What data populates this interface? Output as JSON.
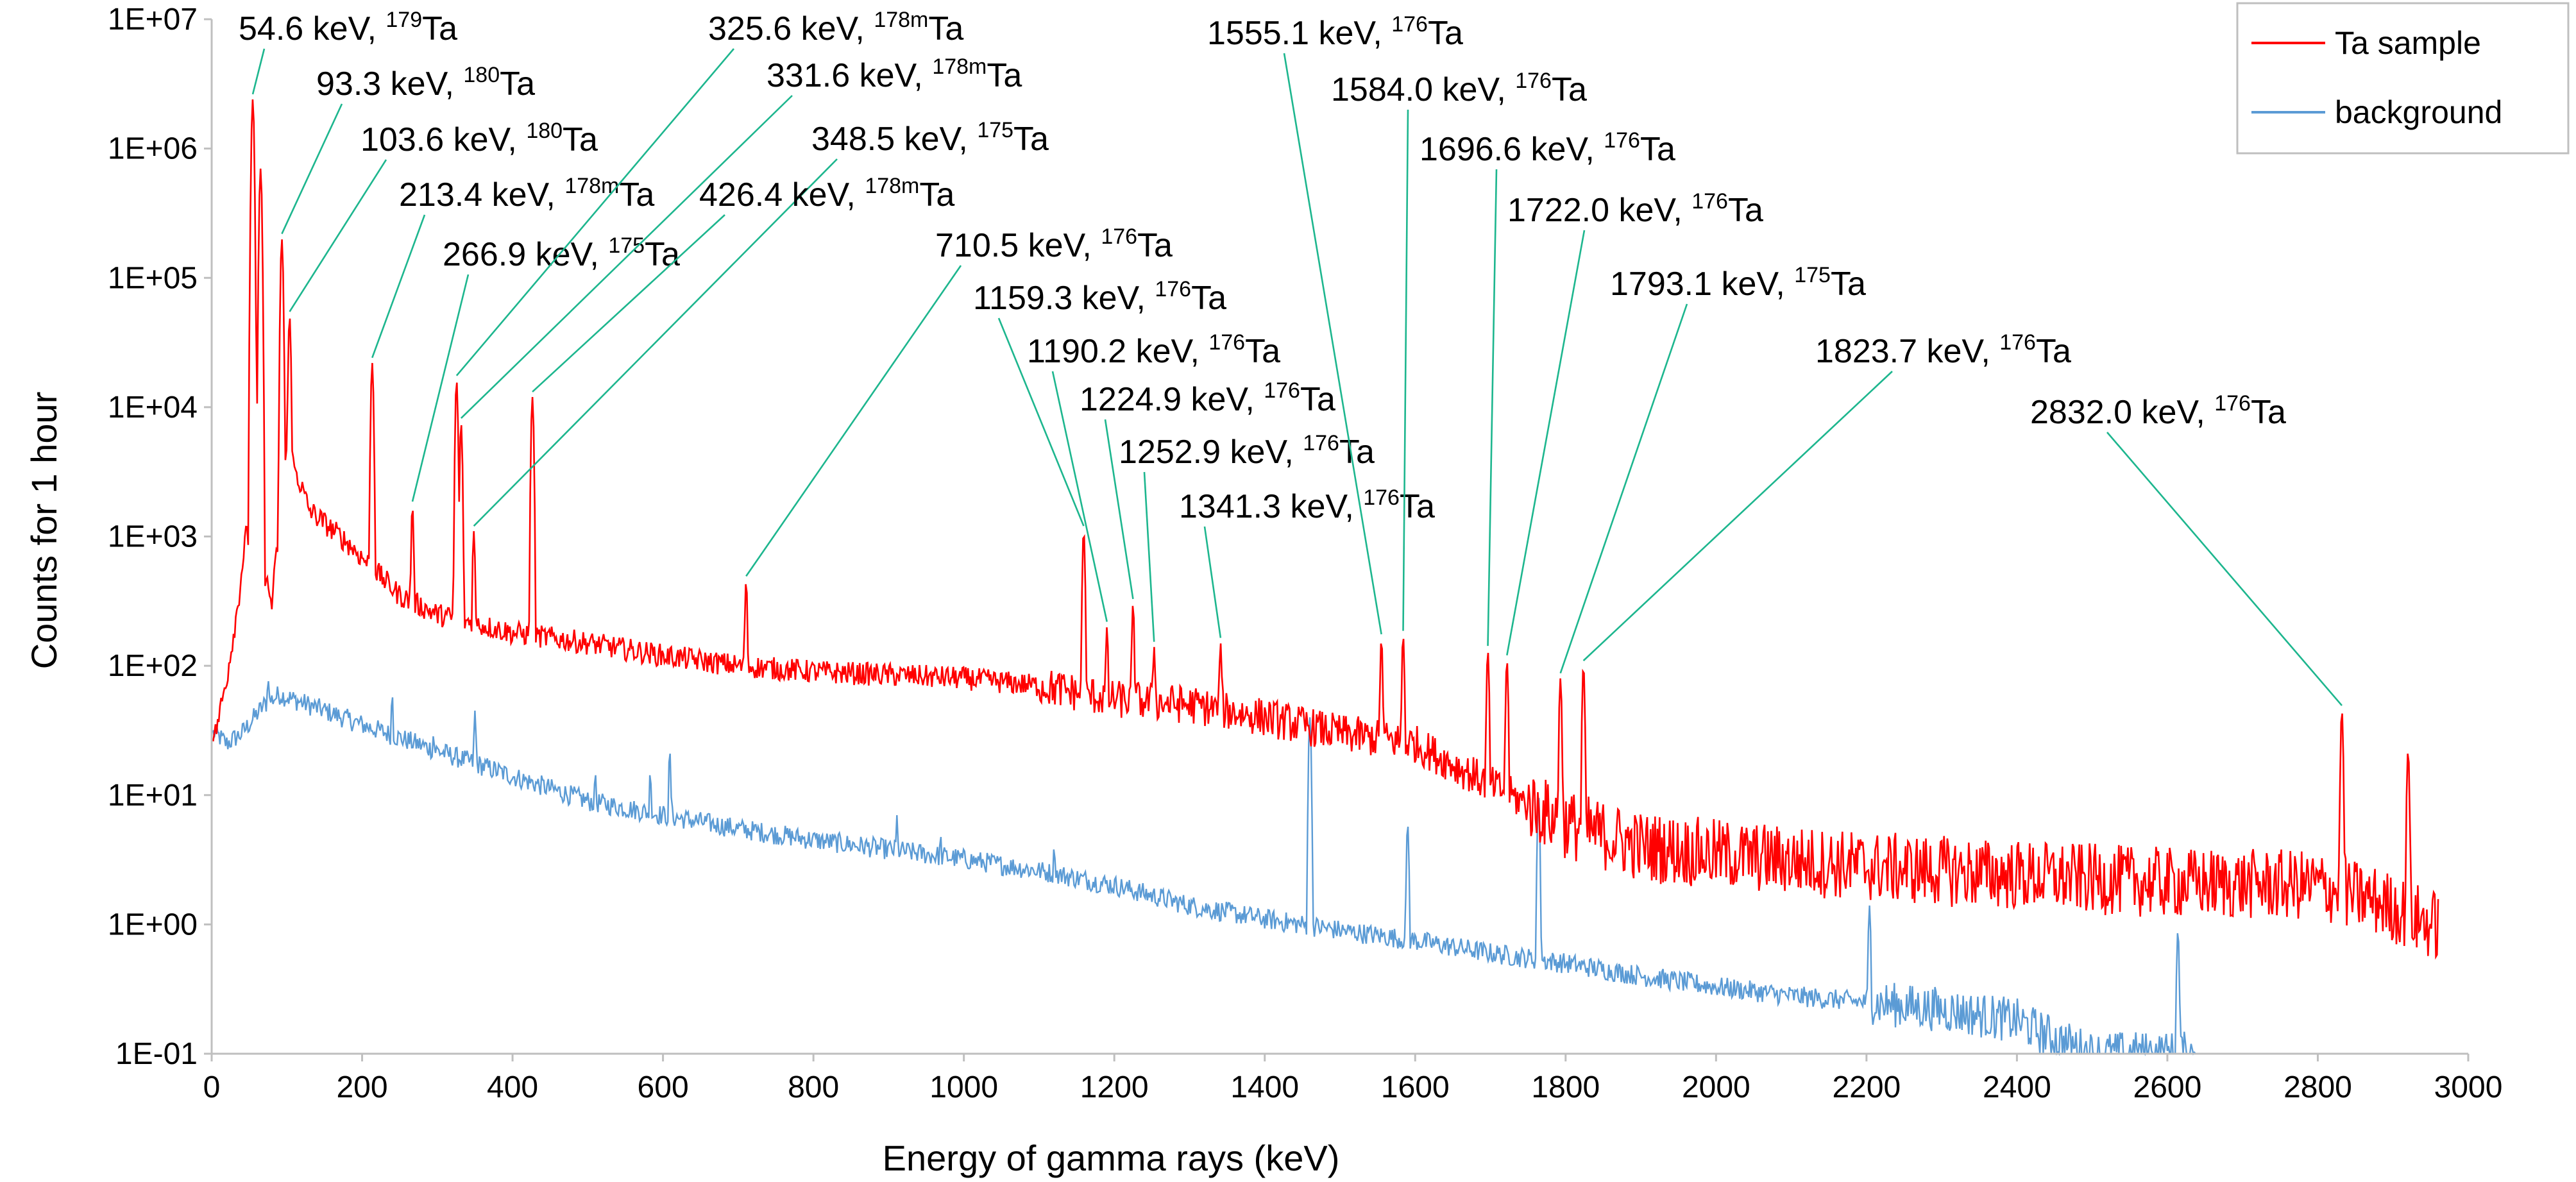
{
  "chart_data": {
    "type": "line",
    "xlabel": "Energy of gamma rays (keV)",
    "ylabel": "Counts for 1 hour",
    "xlim": [
      0,
      3000
    ],
    "ylim": [
      0.1,
      10000000
    ],
    "y_scale": "log",
    "x_ticks": [
      "0",
      "200",
      "400",
      "600",
      "800",
      "1000",
      "1200",
      "1400",
      "1600",
      "1800",
      "2000",
      "2200",
      "2400",
      "2600",
      "2800",
      "3000"
    ],
    "y_ticks": [
      "1E-01",
      "1E+00",
      "1E+01",
      "1E+02",
      "1E+03",
      "1E+04",
      "1E+05",
      "1E+06",
      "1E+07"
    ],
    "legend_position": "top-right",
    "colors": {
      "Ta sample": "#ff0000",
      "background": "#5b9bd5",
      "annotation": "#1db68e"
    },
    "series": [
      {
        "name": "Ta sample",
        "baseline": [
          [
            5,
            30
          ],
          [
            20,
            80
          ],
          [
            35,
            300
          ],
          [
            45,
            1000
          ],
          [
            60,
            900
          ],
          [
            80,
            300
          ],
          [
            100,
            5000
          ],
          [
            130,
            1600
          ],
          [
            180,
            900
          ],
          [
            250,
            350
          ],
          [
            300,
            250
          ],
          [
            400,
            180
          ],
          [
            500,
            150
          ],
          [
            600,
            120
          ],
          [
            700,
            100
          ],
          [
            800,
            90
          ],
          [
            900,
            85
          ],
          [
            1000,
            80
          ],
          [
            1100,
            70
          ],
          [
            1200,
            55
          ],
          [
            1300,
            50
          ],
          [
            1400,
            40
          ],
          [
            1500,
            30
          ],
          [
            1600,
            25
          ],
          [
            1700,
            12
          ],
          [
            1800,
            6
          ],
          [
            1900,
            4
          ],
          [
            2000,
            3.5
          ],
          [
            2200,
            2.8
          ],
          [
            2400,
            2.4
          ],
          [
            2600,
            2.1
          ],
          [
            2800,
            2.0
          ],
          [
            2880,
            1.5
          ],
          [
            2950,
            1.0
          ]
        ],
        "peaks": [
          [
            54.6,
            2400000
          ],
          [
            65,
            700000
          ],
          [
            93.3,
            200000
          ],
          [
            103.6,
            50000
          ],
          [
            213.4,
            22000
          ],
          [
            266.9,
            1700
          ],
          [
            325.6,
            16000
          ],
          [
            331.6,
            7500
          ],
          [
            348.5,
            1100
          ],
          [
            426.4,
            12000
          ],
          [
            710.5,
            450
          ],
          [
            1159.3,
            1100
          ],
          [
            1190.2,
            200
          ],
          [
            1224.9,
            300
          ],
          [
            1252.9,
            140
          ],
          [
            1341.3,
            150
          ],
          [
            1555.1,
            160
          ],
          [
            1584.0,
            170
          ],
          [
            1696.6,
            130
          ],
          [
            1722.0,
            110
          ],
          [
            1793.1,
            80
          ],
          [
            1823.7,
            100
          ],
          [
            2832.0,
            45
          ],
          [
            2920,
            22
          ]
        ]
      },
      {
        "name": "background",
        "baseline": [
          [
            5,
            30
          ],
          [
            20,
            25
          ],
          [
            40,
            30
          ],
          [
            70,
            50
          ],
          [
            90,
            60
          ],
          [
            150,
            45
          ],
          [
            200,
            35
          ],
          [
            300,
            22
          ],
          [
            400,
            14
          ],
          [
            500,
            9
          ],
          [
            600,
            7
          ],
          [
            700,
            5.5
          ],
          [
            800,
            4.5
          ],
          [
            900,
            3.8
          ],
          [
            1000,
            3.2
          ],
          [
            1100,
            2.6
          ],
          [
            1200,
            2.0
          ],
          [
            1300,
            1.4
          ],
          [
            1400,
            1.1
          ],
          [
            1500,
            0.9
          ],
          [
            1600,
            0.75
          ],
          [
            1700,
            0.6
          ],
          [
            1800,
            0.5
          ],
          [
            1900,
            0.4
          ],
          [
            2000,
            0.33
          ],
          [
            2100,
            0.28
          ],
          [
            2200,
            0.25
          ],
          [
            2300,
            0.22
          ],
          [
            2400,
            0.18
          ],
          [
            2450,
            0.13
          ],
          [
            2500,
            0.1
          ]
        ],
        "peaks": [
          [
            75,
            80
          ],
          [
            240,
            60
          ],
          [
            295,
            30
          ],
          [
            350,
            45
          ],
          [
            510,
            15
          ],
          [
            583,
            15
          ],
          [
            609,
            22
          ],
          [
            911,
            7
          ],
          [
            969,
            5
          ],
          [
            1120,
            4
          ],
          [
            1460,
            40
          ],
          [
            1590,
            6
          ],
          [
            1764,
            10
          ],
          [
            2204,
            1.4
          ],
          [
            2614,
            0.9
          ]
        ]
      }
    ],
    "annotations": [
      {
        "energy": 54.6,
        "energy_label": "54.6 keV, ",
        "mass": "179",
        "nuclide": "Ta"
      },
      {
        "energy": 93.3,
        "energy_label": "93.3 keV, ",
        "mass": "180",
        "nuclide": "Ta"
      },
      {
        "energy": 103.6,
        "energy_label": "103.6 keV, ",
        "mass": "180",
        "nuclide": "Ta"
      },
      {
        "energy": 213.4,
        "energy_label": "213.4 keV, ",
        "mass": "178m",
        "nuclide": "Ta"
      },
      {
        "energy": 266.9,
        "energy_label": "266.9 keV, ",
        "mass": "175",
        "nuclide": "Ta"
      },
      {
        "energy": 325.6,
        "energy_label": "325.6 keV, ",
        "mass": "178m",
        "nuclide": "Ta"
      },
      {
        "energy": 331.6,
        "energy_label": "331.6 keV, ",
        "mass": "178m",
        "nuclide": "Ta"
      },
      {
        "energy": 348.5,
        "energy_label": "348.5 keV, ",
        "mass": "175",
        "nuclide": "Ta"
      },
      {
        "energy": 426.4,
        "energy_label": "426.4 keV, ",
        "mass": "178m",
        "nuclide": "Ta"
      },
      {
        "energy": 710.5,
        "energy_label": "710.5 keV, ",
        "mass": "176",
        "nuclide": "Ta"
      },
      {
        "energy": 1159.3,
        "energy_label": "1159.3 keV, ",
        "mass": "176",
        "nuclide": "Ta"
      },
      {
        "energy": 1190.2,
        "energy_label": "1190.2 keV, ",
        "mass": "176",
        "nuclide": "Ta"
      },
      {
        "energy": 1224.9,
        "energy_label": "1224.9 keV, ",
        "mass": "176",
        "nuclide": "Ta"
      },
      {
        "energy": 1252.9,
        "energy_label": "1252.9 keV, ",
        "mass": "176",
        "nuclide": "Ta"
      },
      {
        "energy": 1341.3,
        "energy_label": "1341.3 keV, ",
        "mass": "176",
        "nuclide": "Ta"
      },
      {
        "energy": 1555.1,
        "energy_label": "1555.1 keV, ",
        "mass": "176",
        "nuclide": "Ta"
      },
      {
        "energy": 1584.0,
        "energy_label": "1584.0 keV, ",
        "mass": "176",
        "nuclide": "Ta"
      },
      {
        "energy": 1696.6,
        "energy_label": "1696.6 keV, ",
        "mass": "176",
        "nuclide": "Ta"
      },
      {
        "energy": 1722.0,
        "energy_label": "1722.0 keV, ",
        "mass": "176",
        "nuclide": "Ta"
      },
      {
        "energy": 1793.1,
        "energy_label": "1793.1 keV, ",
        "mass": "175",
        "nuclide": "Ta"
      },
      {
        "energy": 1823.7,
        "energy_label": "1823.7 keV, ",
        "mass": "176",
        "nuclide": "Ta"
      },
      {
        "energy": 2832.0,
        "energy_label": "2832.0 keV, ",
        "mass": "176",
        "nuclide": "Ta"
      }
    ]
  }
}
